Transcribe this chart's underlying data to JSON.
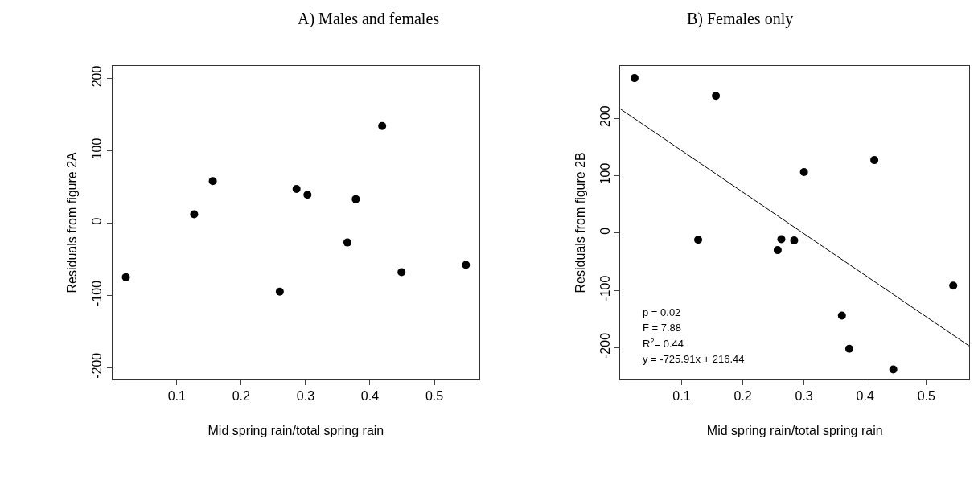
{
  "chart_data": [
    {
      "type": "scatter",
      "title": "A) Males and females",
      "xlabel": "Mid spring rain/total spring rain",
      "ylabel": "Residuals from figure 2A",
      "marker": "circle",
      "series": [
        {
          "color": "#000000",
          "x": [
            0.021,
            0.127,
            0.156,
            0.26,
            0.286,
            0.303,
            0.378,
            0.365,
            0.419,
            0.449,
            0.549
          ],
          "values": [
            -75,
            12,
            58,
            -95,
            47,
            39,
            33,
            -27,
            134,
            -68,
            -58
          ]
        }
      ],
      "xlim": [
        0.0,
        0.57
      ],
      "xticks": [
        0.1,
        0.2,
        0.3,
        0.4,
        0.5
      ],
      "ylim": [
        -216,
        217
      ],
      "yticks": [
        -200,
        -100,
        0,
        100,
        200
      ]
    },
    {
      "type": "scatter",
      "title": "B) Females only",
      "xlabel": "Mid spring rain/total spring rain",
      "ylabel": "Residuals from figure 2B",
      "marker": "circle",
      "series": [
        {
          "color": "#000000",
          "x": [
            0.023,
            0.156,
            0.127,
            0.257,
            0.263,
            0.284,
            0.3,
            0.415,
            0.362,
            0.374,
            0.446,
            0.544
          ],
          "values": [
            270,
            239,
            -12,
            -30,
            -11,
            -13,
            106,
            127,
            -144,
            -202,
            -238,
            -92
          ]
        },
        {
          "type": "line",
          "marker": "none",
          "color": "#000000",
          "x": [
            0.0,
            0.57
          ],
          "values": [
            216,
            -197
          ]
        }
      ],
      "annotations": [
        "p = 0.02",
        "F = 7.88",
        "R$^{2}$= 0.44",
        "y = -725.91x + 216.44"
      ],
      "xlim": [
        0.0,
        0.57
      ],
      "xticks": [
        0.1,
        0.2,
        0.3,
        0.4,
        0.5
      ],
      "ylim": [
        -255,
        291
      ],
      "yticks": [
        -200,
        -100,
        0,
        100,
        200
      ]
    }
  ]
}
